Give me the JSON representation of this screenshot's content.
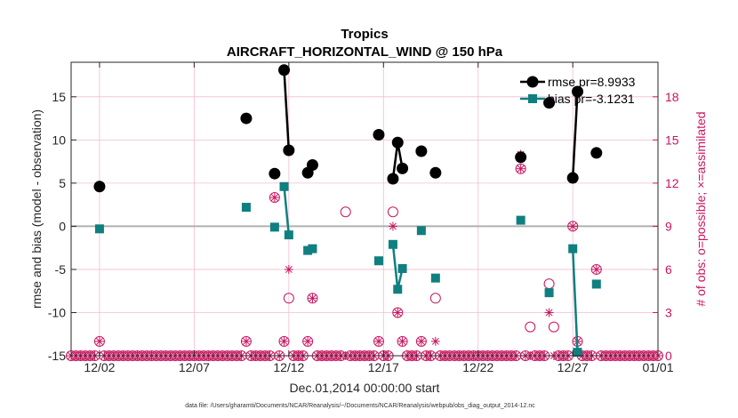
{
  "chart_data": {
    "type": "line",
    "title": "Tropics",
    "subtitle": "AIRCRAFT_HORIZONTAL_WIND @ 150 hPa",
    "xlabel": "Dec.01,2014 00:00:00 start",
    "ylabel": "rmse and bias (model - observation)",
    "y2label": "# of obs: o=possible; ×=assimilated",
    "footnote": "data file: /Users/gharamti/Documents/NCAR/Reanalysis/~/Documents/NCAR/Reanalysis/webpub/obs_diag_output_2014-12.nc",
    "xlim": [
      0.5,
      31.5
    ],
    "ylim": [
      -15,
      19
    ],
    "y2lim": [
      0,
      20.4
    ],
    "x_ticks": [
      {
        "v": 2,
        "label": "12/02"
      },
      {
        "v": 7,
        "label": "12/07"
      },
      {
        "v": 12,
        "label": "12/12"
      },
      {
        "v": 17,
        "label": "12/17"
      },
      {
        "v": 22,
        "label": "12/22"
      },
      {
        "v": 27,
        "label": "12/27"
      },
      {
        "v": 31.5,
        "label": "01/01"
      }
    ],
    "y_ticks": [
      {
        "v": -15,
        "label": "-15"
      },
      {
        "v": -10,
        "label": "-10"
      },
      {
        "v": -5,
        "label": "-5"
      },
      {
        "v": 0,
        "label": "0"
      },
      {
        "v": 5,
        "label": "5"
      },
      {
        "v": 10,
        "label": "10"
      },
      {
        "v": 15,
        "label": "15"
      }
    ],
    "y2_ticks": [
      {
        "v": 0,
        "label": "0"
      },
      {
        "v": 3,
        "label": "3"
      },
      {
        "v": 6,
        "label": "6"
      },
      {
        "v": 9,
        "label": "9"
      },
      {
        "v": 12,
        "label": "12"
      },
      {
        "v": 15,
        "label": "15"
      },
      {
        "v": 18,
        "label": "18"
      }
    ],
    "colors": {
      "rmse": "#000000",
      "bias": "#0f7f7f",
      "obs": "#c8155f",
      "zero": "#b0b0b0",
      "grid": "#f2bcd3"
    },
    "series": [
      {
        "name": "rmse",
        "legend": "rmse pr=8.9933",
        "points": [
          [
            2.0,
            4.6
          ],
          [
            9.75,
            12.5
          ],
          [
            11.25,
            6.1
          ],
          [
            11.75,
            18.1
          ],
          [
            12.0,
            8.8
          ],
          [
            13.0,
            6.2
          ],
          [
            13.25,
            7.1
          ],
          [
            16.75,
            10.6
          ],
          [
            17.5,
            5.5
          ],
          [
            17.75,
            9.7
          ],
          [
            18.0,
            6.7
          ],
          [
            19.0,
            8.7
          ],
          [
            19.75,
            6.2
          ],
          [
            24.25,
            8.0
          ],
          [
            25.75,
            14.3
          ],
          [
            27.0,
            5.6
          ],
          [
            27.25,
            15.6
          ],
          [
            28.25,
            8.5
          ]
        ],
        "segments": [
          [
            0
          ],
          [
            1
          ],
          [
            2
          ],
          [
            3,
            4
          ],
          [
            5,
            6
          ],
          [
            7
          ],
          [
            8,
            9,
            10
          ],
          [
            11
          ],
          [
            12
          ],
          [
            13
          ],
          [
            14
          ],
          [
            15,
            16
          ],
          [
            17
          ]
        ]
      },
      {
        "name": "bias",
        "legend": "bias pr=-3.1231",
        "points": [
          [
            2.0,
            -0.3
          ],
          [
            9.75,
            2.2
          ],
          [
            11.25,
            -0.1
          ],
          [
            11.75,
            4.6
          ],
          [
            12.0,
            -1.0
          ],
          [
            13.0,
            -2.8
          ],
          [
            13.25,
            -2.6
          ],
          [
            16.75,
            -4.0
          ],
          [
            17.5,
            -2.1
          ],
          [
            17.75,
            -7.3
          ],
          [
            18.0,
            -4.9
          ],
          [
            19.0,
            -0.5
          ],
          [
            19.75,
            -6.0
          ],
          [
            24.25,
            0.7
          ],
          [
            25.75,
            -7.7
          ],
          [
            27.0,
            -2.6
          ],
          [
            27.25,
            -14.6
          ],
          [
            28.25,
            -6.7
          ]
        ],
        "segments": [
          [
            0
          ],
          [
            1
          ],
          [
            2
          ],
          [
            3,
            4
          ],
          [
            5,
            6
          ],
          [
            7
          ],
          [
            8,
            9,
            10
          ],
          [
            11
          ],
          [
            12
          ],
          [
            13
          ],
          [
            14
          ],
          [
            15,
            16
          ],
          [
            17
          ]
        ]
      }
    ],
    "obs_possible": [
      [
        2.0,
        1
      ],
      [
        9.75,
        1
      ],
      [
        11.25,
        11
      ],
      [
        11.75,
        1
      ],
      [
        12.0,
        4
      ],
      [
        13.0,
        1
      ],
      [
        13.25,
        4
      ],
      [
        15.0,
        10
      ],
      [
        16.75,
        1
      ],
      [
        17.5,
        10
      ],
      [
        17.75,
        3
      ],
      [
        18.0,
        1
      ],
      [
        19.0,
        1
      ],
      [
        19.75,
        4
      ],
      [
        24.25,
        13
      ],
      [
        24.75,
        2
      ],
      [
        25.75,
        5
      ],
      [
        26.0,
        2
      ],
      [
        27.0,
        9
      ],
      [
        27.25,
        1
      ],
      [
        28.25,
        6
      ]
    ],
    "obs_assimilated": [
      [
        2.0,
        1
      ],
      [
        9.75,
        1
      ],
      [
        11.25,
        11
      ],
      [
        11.75,
        1
      ],
      [
        12.0,
        6
      ],
      [
        13.0,
        1
      ],
      [
        13.25,
        4
      ],
      [
        16.75,
        1
      ],
      [
        17.5,
        9
      ],
      [
        17.75,
        3
      ],
      [
        18.0,
        1
      ],
      [
        19.0,
        1
      ],
      [
        19.75,
        1
      ],
      [
        24.25,
        13
      ],
      [
        24.25,
        14
      ],
      [
        25.75,
        3
      ],
      [
        27.0,
        9
      ],
      [
        27.25,
        1
      ],
      [
        28.25,
        6
      ]
    ],
    "zero_obs_x_range": [
      0.5,
      31.5
    ],
    "zero_obs_step": 0.25
  }
}
